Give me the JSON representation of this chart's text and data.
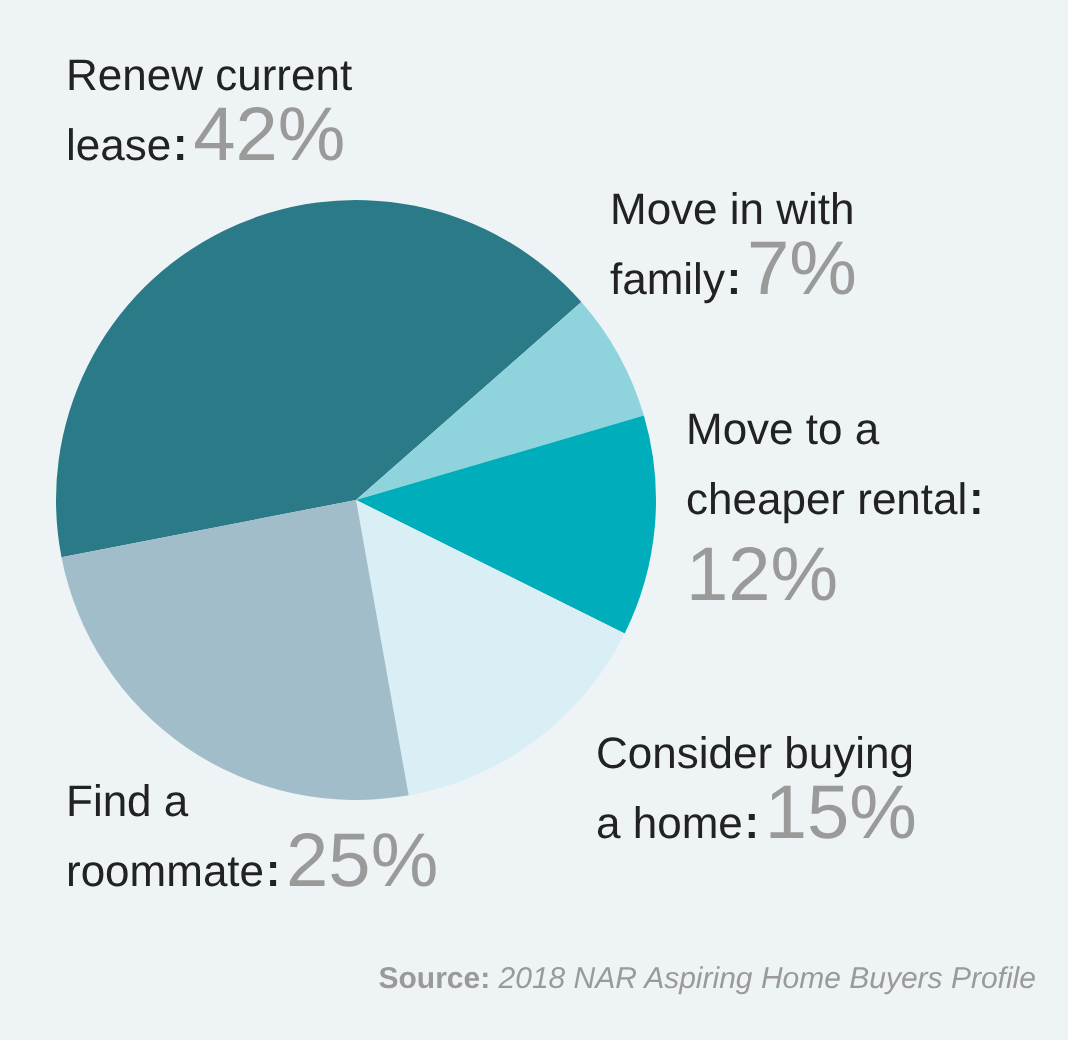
{
  "chart_data": {
    "type": "pie",
    "categories": [
      "Renew current lease",
      "Move in with family",
      "Move to a cheaper rental",
      "Consider buying a home",
      "Find a roommate"
    ],
    "values": [
      42,
      7,
      12,
      15,
      25
    ],
    "value_labels": [
      "42%",
      "7%",
      "12%",
      "15%",
      "25%"
    ],
    "colors": [
      "#2a7a88",
      "#8fd4dd",
      "#00adba",
      "#d9eef5",
      "#a1bdc9"
    ],
    "annotations": [
      "Source: 2018 NAR Aspiring Home Buyers Profile"
    ]
  }
}
